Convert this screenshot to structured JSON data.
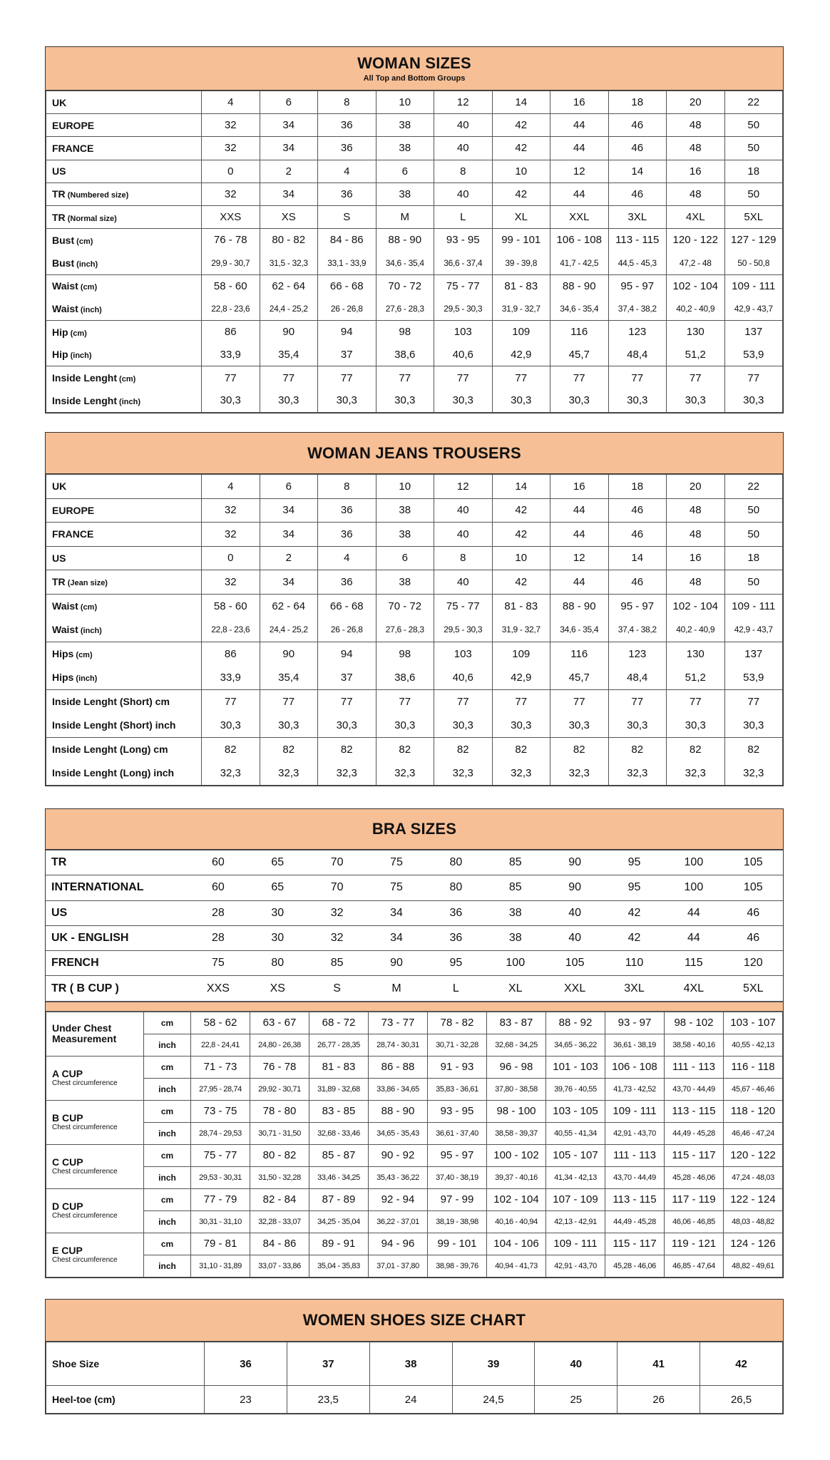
{
  "colors": {
    "header_bg": "#f7bf95",
    "border": "#333333"
  },
  "woman_sizes": {
    "title": "WOMAN SIZES",
    "subtitle": "All Top and Bottom Groups",
    "rows": [
      {
        "main": "UK",
        "sub": "",
        "values": [
          "4",
          "6",
          "8",
          "10",
          "12",
          "14",
          "16",
          "18",
          "20",
          "22"
        ]
      },
      {
        "main": "EUROPE",
        "sub": "",
        "values": [
          "32",
          "34",
          "36",
          "38",
          "40",
          "42",
          "44",
          "46",
          "48",
          "50"
        ]
      },
      {
        "main": "FRANCE",
        "sub": "",
        "values": [
          "32",
          "34",
          "36",
          "38",
          "40",
          "42",
          "44",
          "46",
          "48",
          "50"
        ]
      },
      {
        "main": "US",
        "sub": "",
        "values": [
          "0",
          "2",
          "4",
          "6",
          "8",
          "10",
          "12",
          "14",
          "16",
          "18"
        ]
      },
      {
        "main": "TR",
        "sub": " (Numbered size)",
        "values": [
          "32",
          "34",
          "36",
          "38",
          "40",
          "42",
          "44",
          "46",
          "48",
          "50"
        ]
      },
      {
        "main": "TR",
        "sub": " (Normal size)",
        "values": [
          "XXS",
          "XS",
          "S",
          "M",
          "L",
          "XL",
          "XXL",
          "3XL",
          "4XL",
          "5XL"
        ]
      },
      {
        "main": "Bust",
        "sub": " (cm)",
        "group": 1,
        "values": [
          "76 - 78",
          "80 - 82",
          "84 - 86",
          "88 - 90",
          "93 - 95",
          "99 - 101",
          "106 - 108",
          "113 - 115",
          "120 - 122",
          "127 - 129"
        ]
      },
      {
        "main": "Bust",
        "sub": " (inch)",
        "group": 2,
        "small": true,
        "values": [
          "29,9 - 30,7",
          "31,5 - 32,3",
          "33,1 - 33,9",
          "34,6 - 35,4",
          "36,6 - 37,4",
          "39 - 39,8",
          "41,7 - 42,5",
          "44,5 - 45,3",
          "47,2 - 48",
          "50 - 50,8"
        ]
      },
      {
        "main": "Waist",
        "sub": " (cm)",
        "group": 1,
        "values": [
          "58 - 60",
          "62 - 64",
          "66 - 68",
          "70 - 72",
          "75 - 77",
          "81 - 83",
          "88 - 90",
          "95 - 97",
          "102 - 104",
          "109 - 111"
        ]
      },
      {
        "main": "Waist",
        "sub": " (inch)",
        "group": 2,
        "small": true,
        "values": [
          "22,8 - 23,6",
          "24,4 - 25,2",
          "26 - 26,8",
          "27,6 - 28,3",
          "29,5 - 30,3",
          "31,9 - 32,7",
          "34,6 - 35,4",
          "37,4 - 38,2",
          "40,2 - 40,9",
          "42,9 - 43,7"
        ]
      },
      {
        "main": "Hip",
        "sub": " (cm)",
        "group": 1,
        "values": [
          "86",
          "90",
          "94",
          "98",
          "103",
          "109",
          "116",
          "123",
          "130",
          "137"
        ]
      },
      {
        "main": "Hip",
        "sub": " (inch)",
        "group": 2,
        "values": [
          "33,9",
          "35,4",
          "37",
          "38,6",
          "40,6",
          "42,9",
          "45,7",
          "48,4",
          "51,2",
          "53,9"
        ]
      },
      {
        "main": "Inside Lenght",
        "sub": " (cm)",
        "group": 1,
        "values": [
          "77",
          "77",
          "77",
          "77",
          "77",
          "77",
          "77",
          "77",
          "77",
          "77"
        ]
      },
      {
        "main": "Inside Lenght",
        "sub": " (inch)",
        "group": 2,
        "values": [
          "30,3",
          "30,3",
          "30,3",
          "30,3",
          "30,3",
          "30,3",
          "30,3",
          "30,3",
          "30,3",
          "30,3"
        ]
      }
    ]
  },
  "jeans": {
    "title": "WOMAN JEANS TROUSERS",
    "rows": [
      {
        "main": "UK",
        "sub": "",
        "values": [
          "4",
          "6",
          "8",
          "10",
          "12",
          "14",
          "16",
          "18",
          "20",
          "22"
        ]
      },
      {
        "main": "EUROPE",
        "sub": "",
        "values": [
          "32",
          "34",
          "36",
          "38",
          "40",
          "42",
          "44",
          "46",
          "48",
          "50"
        ]
      },
      {
        "main": "FRANCE",
        "sub": "",
        "values": [
          "32",
          "34",
          "36",
          "38",
          "40",
          "42",
          "44",
          "46",
          "48",
          "50"
        ]
      },
      {
        "main": "US",
        "sub": "",
        "values": [
          "0",
          "2",
          "4",
          "6",
          "8",
          "10",
          "12",
          "14",
          "16",
          "18"
        ]
      },
      {
        "main": "TR",
        "sub": " (Jean size)",
        "values": [
          "32",
          "34",
          "36",
          "38",
          "40",
          "42",
          "44",
          "46",
          "48",
          "50"
        ]
      },
      {
        "main": "Waist",
        "sub": " (cm)",
        "group": 1,
        "values": [
          "58 - 60",
          "62 - 64",
          "66 - 68",
          "70 - 72",
          "75 - 77",
          "81 - 83",
          "88 - 90",
          "95 - 97",
          "102 - 104",
          "109 - 111"
        ]
      },
      {
        "main": "Waist",
        "sub": " (inch)",
        "group": 2,
        "small": true,
        "values": [
          "22,8 - 23,6",
          "24,4 - 25,2",
          "26 - 26,8",
          "27,6 - 28,3",
          "29,5 - 30,3",
          "31,9 - 32,7",
          "34,6 - 35,4",
          "37,4 - 38,2",
          "40,2 - 40,9",
          "42,9 - 43,7"
        ]
      },
      {
        "main": "Hips",
        "sub": " (cm)",
        "group": 1,
        "values": [
          "86",
          "90",
          "94",
          "98",
          "103",
          "109",
          "116",
          "123",
          "130",
          "137"
        ]
      },
      {
        "main": "Hips",
        "sub": " (inch)",
        "group": 2,
        "values": [
          "33,9",
          "35,4",
          "37",
          "38,6",
          "40,6",
          "42,9",
          "45,7",
          "48,4",
          "51,2",
          "53,9"
        ]
      },
      {
        "main": "Inside Lenght (Short) cm",
        "sub": "",
        "group": 1,
        "values": [
          "77",
          "77",
          "77",
          "77",
          "77",
          "77",
          "77",
          "77",
          "77",
          "77"
        ]
      },
      {
        "main": "Inside Lenght (Short) inch",
        "sub": "",
        "group": 2,
        "values": [
          "30,3",
          "30,3",
          "30,3",
          "30,3",
          "30,3",
          "30,3",
          "30,3",
          "30,3",
          "30,3",
          "30,3"
        ]
      },
      {
        "main": "Inside Lenght (Long) cm",
        "sub": "",
        "group": 1,
        "values": [
          "82",
          "82",
          "82",
          "82",
          "82",
          "82",
          "82",
          "82",
          "82",
          "82"
        ]
      },
      {
        "main": "Inside Lenght (Long) inch",
        "sub": "",
        "group": 2,
        "values": [
          "32,3",
          "32,3",
          "32,3",
          "32,3",
          "32,3",
          "32,3",
          "32,3",
          "32,3",
          "32,3",
          "32,3"
        ]
      }
    ]
  },
  "bra": {
    "title": "BRA SIZES",
    "top_rows": [
      {
        "main": "TR",
        "sub": "",
        "values": [
          "60",
          "65",
          "70",
          "75",
          "80",
          "85",
          "90",
          "95",
          "100",
          "105"
        ]
      },
      {
        "main": "INTERNATIONAL",
        "sub": "",
        "values": [
          "60",
          "65",
          "70",
          "75",
          "80",
          "85",
          "90",
          "95",
          "100",
          "105"
        ]
      },
      {
        "main": "US",
        "sub": "",
        "values": [
          "28",
          "30",
          "32",
          "34",
          "36",
          "38",
          "40",
          "42",
          "44",
          "46"
        ]
      },
      {
        "main": "UK - ENGLISH",
        "sub": "",
        "values": [
          "28",
          "30",
          "32",
          "34",
          "36",
          "38",
          "40",
          "42",
          "44",
          "46"
        ]
      },
      {
        "main": "FRENCH",
        "sub": "",
        "values": [
          "75",
          "80",
          "85",
          "90",
          "95",
          "100",
          "105",
          "110",
          "115",
          "120"
        ]
      },
      {
        "main": "TR ( B CUP )",
        "sub": "",
        "values": [
          "XXS",
          "XS",
          "S",
          "M",
          "L",
          "XL",
          "XXL",
          "3XL",
          "4XL",
          "5XL"
        ]
      }
    ],
    "unit_cm": "cm",
    "unit_inch": "inch",
    "cups": [
      {
        "main": "Under Chest Measurement",
        "caption": "",
        "cm": [
          "58 - 62",
          "63 - 67",
          "68 - 72",
          "73 - 77",
          "78 - 82",
          "83 - 87",
          "88 - 92",
          "93 - 97",
          "98 - 102",
          "103 - 107"
        ],
        "inch": [
          "22,8 - 24,41",
          "24,80 - 26,38",
          "26,77 - 28,35",
          "28,74 - 30,31",
          "30,71 - 32,28",
          "32,68 - 34,25",
          "34,65 - 36,22",
          "36,61 - 38,19",
          "38,58 - 40,16",
          "40,55 - 42,13"
        ]
      },
      {
        "main": "A CUP",
        "caption": "Chest circumference",
        "cm": [
          "71 - 73",
          "76 - 78",
          "81 - 83",
          "86 - 88",
          "91 - 93",
          "96 - 98",
          "101 - 103",
          "106 - 108",
          "111 - 113",
          "116 - 118"
        ],
        "inch": [
          "27,95 - 28,74",
          "29,92 - 30,71",
          "31,89 - 32,68",
          "33,86 - 34,65",
          "35,83 - 36,61",
          "37,80 - 38,58",
          "39,76 - 40,55",
          "41,73 - 42,52",
          "43,70 - 44,49",
          "45,67 - 46,46"
        ]
      },
      {
        "main": "B CUP",
        "caption": "Chest circumference",
        "cm": [
          "73 - 75",
          "78 - 80",
          "83 - 85",
          "88 - 90",
          "93 - 95",
          "98 - 100",
          "103 - 105",
          "109 - 111",
          "113 - 115",
          "118 - 120"
        ],
        "inch": [
          "28,74 - 29,53",
          "30,71 - 31,50",
          "32,68 - 33,46",
          "34,65 - 35,43",
          "36,61 - 37,40",
          "38,58 - 39,37",
          "40,55 - 41,34",
          "42,91 - 43,70",
          "44,49 - 45,28",
          "46,46 - 47,24"
        ]
      },
      {
        "main": "C CUP",
        "caption": "Chest circumference",
        "cm": [
          "75 - 77",
          "80 - 82",
          "85 - 87",
          "90 - 92",
          "95 - 97",
          "100 - 102",
          "105 - 107",
          "111 - 113",
          "115 - 117",
          "120 - 122"
        ],
        "inch": [
          "29,53 - 30,31",
          "31,50 - 32,28",
          "33,46 - 34,25",
          "35,43 - 36,22",
          "37,40 - 38,19",
          "39,37 - 40,16",
          "41,34 - 42,13",
          "43,70 - 44,49",
          "45,28 - 46,06",
          "47,24 - 48,03"
        ]
      },
      {
        "main": "D CUP",
        "caption": "Chest circumference",
        "cm": [
          "77 - 79",
          "82 - 84",
          "87 - 89",
          "92 - 94",
          "97 - 99",
          "102 - 104",
          "107 - 109",
          "113 - 115",
          "117 - 119",
          "122 - 124"
        ],
        "inch": [
          "30,31 - 31,10",
          "32,28 - 33,07",
          "34,25 - 35,04",
          "36,22 - 37,01",
          "38,19 - 38,98",
          "40,16 - 40,94",
          "42,13 - 42,91",
          "44,49 - 45,28",
          "46,06 - 46,85",
          "48,03 - 48,82"
        ]
      },
      {
        "main": "E CUP",
        "caption": "Chest circumference",
        "cm": [
          "79 - 81",
          "84 - 86",
          "89 - 91",
          "94 - 96",
          "99 - 101",
          "104 - 106",
          "109 - 111",
          "115 - 117",
          "119 - 121",
          "124 - 126"
        ],
        "inch": [
          "31,10 - 31,89",
          "33,07 - 33,86",
          "35,04 - 35,83",
          "37,01 - 37,80",
          "38,98 - 39,76",
          "40,94 - 41,73",
          "42,91 - 43,70",
          "45,28 - 46,06",
          "46,85 - 47,64",
          "48,82 - 49,61"
        ]
      }
    ]
  },
  "shoes": {
    "title": "WOMEN SHOES SIZE CHART",
    "rows": [
      {
        "main": "Shoe Size",
        "sub": "",
        "bold": true,
        "values": [
          "36",
          "37",
          "38",
          "39",
          "40",
          "41",
          "42"
        ]
      },
      {
        "main": "Heel-toe (cm)",
        "sub": "",
        "values": [
          "23",
          "23,5",
          "24",
          "24,5",
          "25",
          "26",
          "26,5"
        ]
      }
    ]
  }
}
